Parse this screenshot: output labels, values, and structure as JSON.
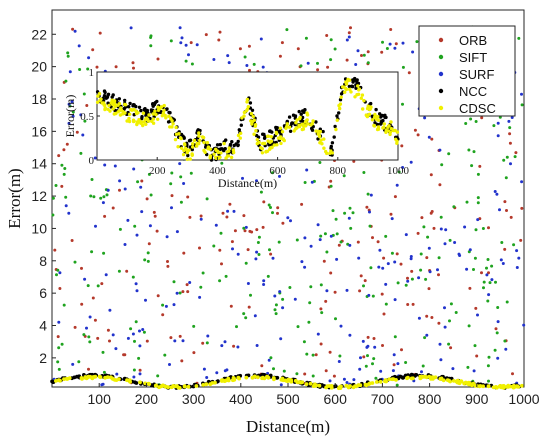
{
  "chart_data": [
    {
      "id": "main",
      "type": "scatter",
      "xlabel": "Distance(m)",
      "ylabel": "Error(m)",
      "xlim": [
        0,
        1000
      ],
      "ylim": [
        0.2,
        23.5
      ],
      "xticks": [
        100,
        200,
        300,
        400,
        500,
        600,
        700,
        800,
        900,
        1000
      ],
      "yticks": [
        2,
        4,
        6,
        8,
        10,
        12,
        14,
        16,
        18,
        20,
        22
      ],
      "grid": false,
      "legend_position": "top-right",
      "series": [
        {
          "name": "ORB",
          "color": "#b5392b",
          "pattern": "scatter",
          "points": 260
        },
        {
          "name": "SIFT",
          "color": "#1fa31f",
          "pattern": "scatter",
          "points": 320
        },
        {
          "name": "SURF",
          "color": "#2233cc",
          "pattern": "scatter",
          "points": 300
        },
        {
          "name": "NCC",
          "color": "#000000",
          "pattern": "band",
          "level_range": [
            0.2,
            0.9
          ],
          "points": 220
        },
        {
          "name": "CDSC",
          "color": "#f0f000",
          "pattern": "band",
          "level_range": [
            0.2,
            0.8
          ],
          "points": 220
        }
      ]
    },
    {
      "id": "inset",
      "type": "scatter",
      "xlabel": "Distance(m)",
      "ylabel": "Error(m)",
      "xlim": [
        0,
        1000
      ],
      "ylim": [
        0,
        1
      ],
      "xticks": [
        200,
        400,
        600,
        800,
        1000
      ],
      "yticks": [
        0,
        0.5,
        1
      ],
      "ytick_labels": [
        "0",
        "0.5",
        "1"
      ],
      "series": [
        {
          "name": "NCC",
          "color": "#000000",
          "profile_x": [
            0,
            60,
            120,
            160,
            220,
            260,
            300,
            340,
            380,
            420,
            460,
            500,
            540,
            580,
            620,
            660,
            700,
            740,
            780,
            820,
            860,
            900,
            940,
            980,
            1000
          ],
          "profile_y": [
            0.75,
            0.65,
            0.55,
            0.5,
            0.62,
            0.35,
            0.1,
            0.3,
            0.05,
            0.15,
            0.12,
            0.7,
            0.2,
            0.25,
            0.35,
            0.45,
            0.5,
            0.3,
            0.1,
            0.9,
            0.85,
            0.6,
            0.45,
            0.4,
            0.3
          ]
        },
        {
          "name": "CDSC",
          "color": "#f0f000",
          "profile_x": [
            0,
            60,
            120,
            160,
            220,
            260,
            300,
            340,
            380,
            420,
            460,
            500,
            540,
            580,
            620,
            660,
            700,
            740,
            780,
            820,
            860,
            900,
            940,
            980,
            1000
          ],
          "profile_y": [
            0.7,
            0.6,
            0.5,
            0.45,
            0.55,
            0.3,
            0.05,
            0.25,
            0.05,
            0.1,
            0.1,
            0.65,
            0.15,
            0.2,
            0.3,
            0.4,
            0.45,
            0.25,
            0.05,
            0.85,
            0.8,
            0.55,
            0.4,
            0.35,
            0.25
          ]
        }
      ]
    }
  ]
}
